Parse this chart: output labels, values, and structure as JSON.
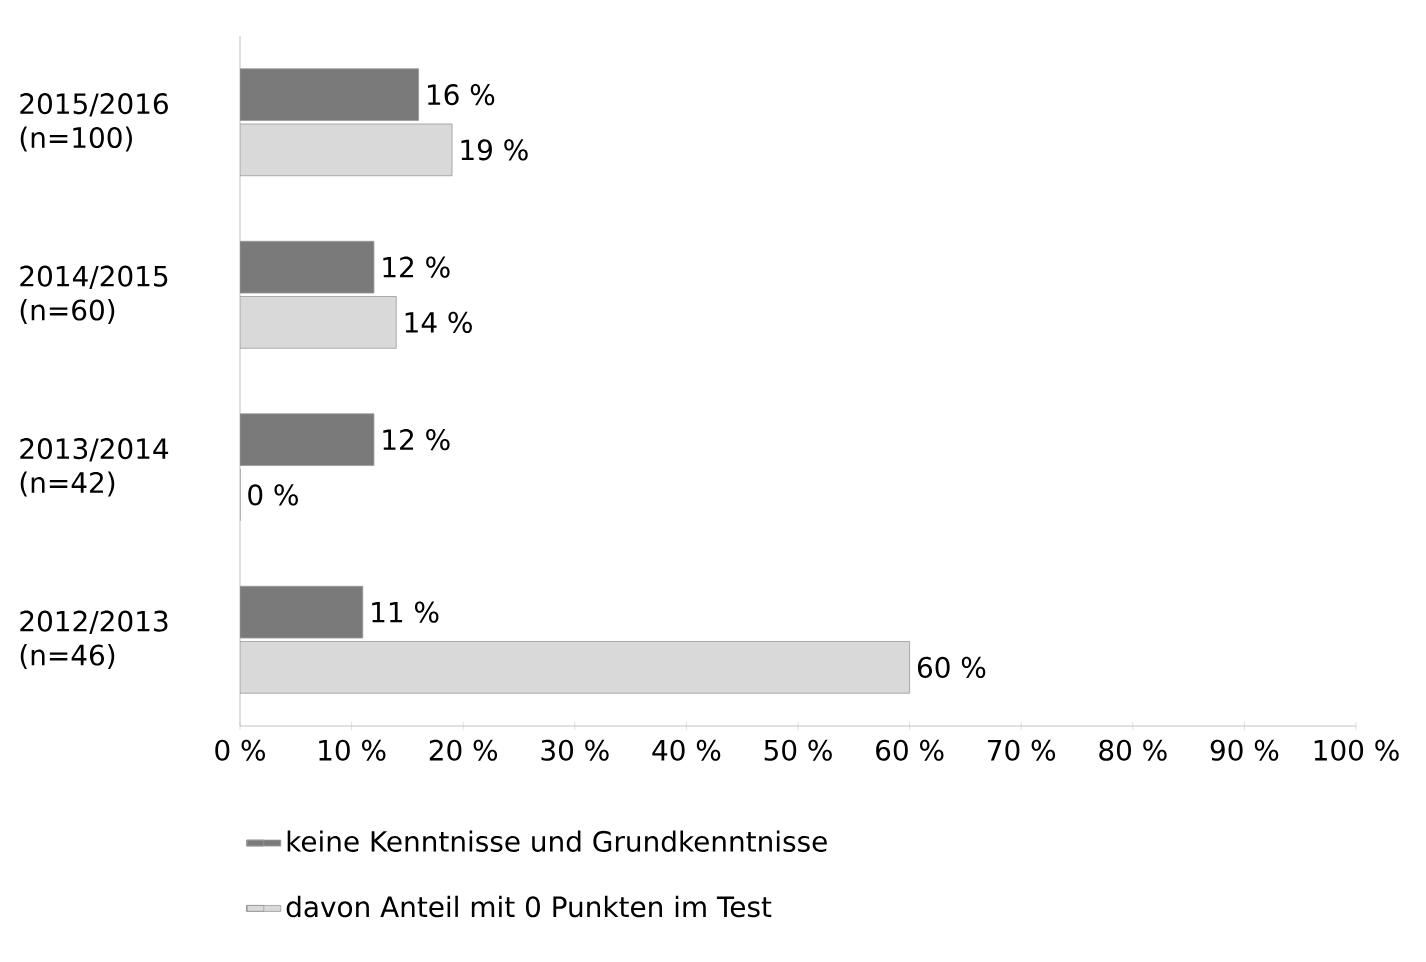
{
  "chart_data": {
    "type": "bar",
    "orientation": "horizontal",
    "categories": [
      "2015/2016 (n=100)",
      "2014/2015 (n=60)",
      "2013/2014 (n=42)",
      "2012/2013 (n=46)"
    ],
    "series": [
      {
        "name": "keine Kenntnisse und Grundkenntnisse",
        "color": "#7a7a7a",
        "values": [
          16,
          12,
          12,
          11
        ],
        "value_labels": [
          "16 %",
          "12 %",
          "12 %",
          "11 %"
        ]
      },
      {
        "name": "davon Anteil mit 0 Punkten im Test",
        "color": "#d9d9d9",
        "values": [
          19,
          14,
          0,
          60
        ],
        "value_labels": [
          "19 %",
          "14 %",
          "0 %",
          "60 %"
        ]
      }
    ],
    "xlim": [
      0,
      100
    ],
    "xticks": [
      {
        "value": 0,
        "label": "0 %"
      },
      {
        "value": 10,
        "label": "10 %"
      },
      {
        "value": 20,
        "label": "20 %"
      },
      {
        "value": 30,
        "label": "30 %"
      },
      {
        "value": 40,
        "label": "40 %"
      },
      {
        "value": 50,
        "label": "50 %"
      },
      {
        "value": 60,
        "label": "60 %"
      },
      {
        "value": 70,
        "label": "70 %"
      },
      {
        "value": 80,
        "label": "80 %"
      },
      {
        "value": 90,
        "label": "90 %"
      },
      {
        "value": 100,
        "label": "100 %"
      }
    ],
    "legend": "bottom",
    "grid": false
  }
}
